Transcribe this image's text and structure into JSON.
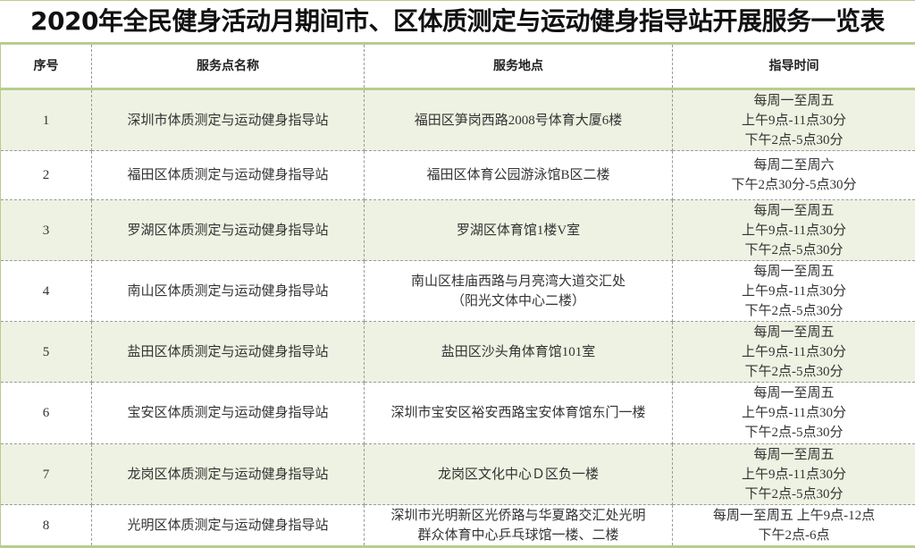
{
  "title": "2020年全民健身活动月期间市、区体质测定与运动健身指导站开展服务一览表",
  "headers": [
    "序号",
    "服务点名称",
    "服务地点",
    "指导时间"
  ],
  "accent_color": "#b7cd8f",
  "stripe_color": "#eef2e2",
  "rows": [
    {
      "no": "1",
      "name": "深圳市体质测定与运动健身指导站",
      "location": [
        "福田区笋岗西路2008号体育大厦6楼"
      ],
      "time": [
        "每周一至周五",
        "上午9点-11点30分",
        "下午2点-5点30分"
      ]
    },
    {
      "no": "2",
      "name": "福田区体质测定与运动健身指导站",
      "location": [
        "福田区体育公园游泳馆B区二楼"
      ],
      "time": [
        "每周二至周六",
        "下午2点30分-5点30分"
      ]
    },
    {
      "no": "3",
      "name": "罗湖区体质测定与运动健身指导站",
      "location": [
        "罗湖区体育馆1楼V室"
      ],
      "time": [
        "每周一至周五",
        "上午9点-11点30分",
        "下午2点-5点30分"
      ]
    },
    {
      "no": "4",
      "name": "南山区体质测定与运动健身指导站",
      "location": [
        "南山区桂庙西路与月亮湾大道交汇处",
        "（阳光文体中心二楼）"
      ],
      "time": [
        "每周一至周五",
        "上午9点-11点30分",
        "下午2点-5点30分"
      ]
    },
    {
      "no": "5",
      "name": "盐田区体质测定与运动健身指导站",
      "location": [
        "盐田区沙头角体育馆101室"
      ],
      "time": [
        "每周一至周五",
        "上午9点-11点30分",
        "下午2点-5点30分"
      ]
    },
    {
      "no": "6",
      "name": "宝安区体质测定与运动健身指导站",
      "location": [
        "深圳市宝安区裕安西路宝安体育馆东门一楼"
      ],
      "time": [
        "每周一至周五",
        "上午9点-11点30分",
        "下午2点-5点30分"
      ]
    },
    {
      "no": "7",
      "name": "龙岗区体质测定与运动健身指导站",
      "location": [
        "龙岗区文化中心Ｄ区负一楼"
      ],
      "time": [
        "每周一至周五",
        "上午9点-11点30分",
        "下午2点-5点30分"
      ]
    },
    {
      "no": "8",
      "name": "光明区体质测定与运动健身指导站",
      "location": [
        "深圳市光明新区光侨路与华夏路交汇处光明",
        "群众体育中心乒乓球馆一楼、二楼"
      ],
      "time": [
        "每周一至周五 上午9点-12点",
        "下午2点-6点"
      ]
    }
  ]
}
